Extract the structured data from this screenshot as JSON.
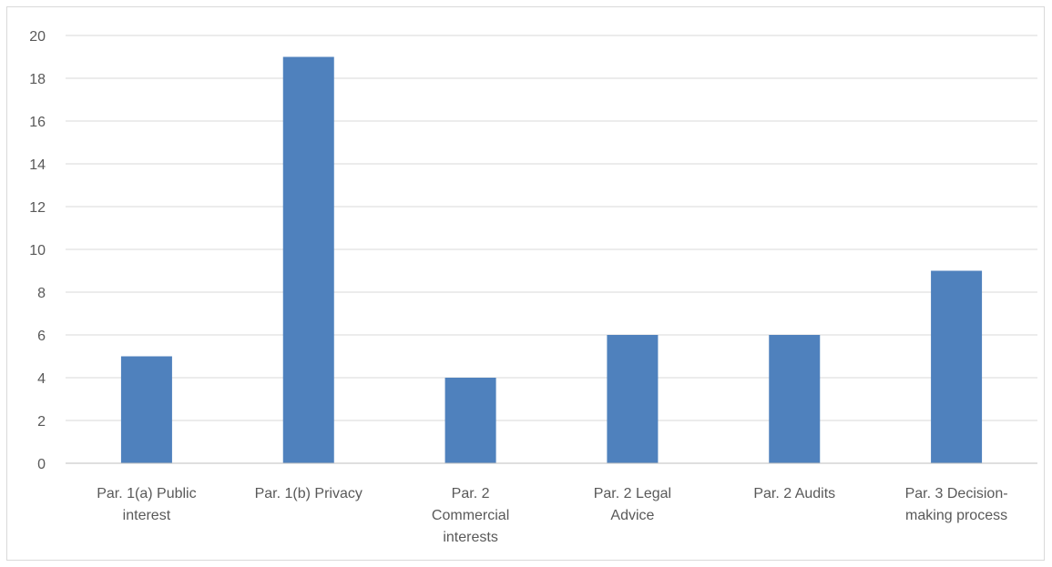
{
  "chart_data": {
    "type": "bar",
    "title": "",
    "xlabel": "",
    "ylabel": "",
    "categories": [
      [
        "Par. 1(a) Public",
        "interest"
      ],
      [
        "Par. 1(b) Privacy"
      ],
      [
        "Par. 2",
        "Commercial",
        "interests"
      ],
      [
        "Par. 2 Legal",
        "Advice"
      ],
      [
        "Par. 2 Audits"
      ],
      [
        "Par. 3 Decision-",
        "making process"
      ]
    ],
    "values": [
      5,
      19,
      4,
      6,
      6,
      9
    ],
    "ylim": [
      0,
      20
    ],
    "yticks": [
      0,
      2,
      4,
      6,
      8,
      10,
      12,
      14,
      16,
      18,
      20
    ],
    "grid": true,
    "legend": "none",
    "bar_color": "#4f81bd",
    "grid_color": "#d9d9d9",
    "axis_color": "#bfbfbf"
  }
}
